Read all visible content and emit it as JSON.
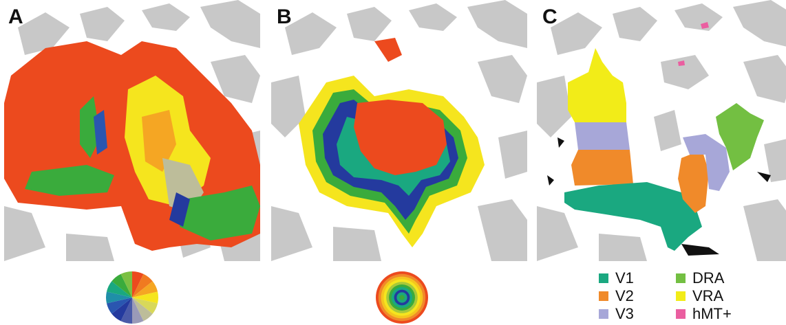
{
  "panels": {
    "a": {
      "label": "A"
    },
    "b": {
      "label": "B"
    },
    "c": {
      "label": "C"
    }
  },
  "legend": {
    "items": [
      {
        "label": "V1",
        "color": "#1aa880"
      },
      {
        "label": "V2",
        "color": "#f08a2a"
      },
      {
        "label": "V3",
        "color": "#a7a7d8"
      },
      {
        "label": "DRA",
        "color": "#73bf42"
      },
      {
        "label": "VRA",
        "color": "#f2ec18"
      },
      {
        "label": "hMT+",
        "color": "#ea5ea0"
      }
    ]
  },
  "colors": {
    "sulcus_gray": "#c8c8c8",
    "red_orange": "#ec4a1e",
    "orange": "#f08a2a",
    "yellow": "#f5e51e",
    "green": "#3aab3c",
    "blue": "#243a9e",
    "teal": "#1aa880"
  },
  "keys": {
    "polar_angle": [
      "#ec4a1e",
      "#f07a20",
      "#f5a623",
      "#f5e51e",
      "#d8d85a",
      "#bdbd9a",
      "#9a9ab8",
      "#4a5aa8",
      "#243a9e",
      "#2a56b0",
      "#1f8fa8",
      "#1aa880",
      "#3aab3c",
      "#7bc043"
    ],
    "eccentricity": [
      "#ec4a1e",
      "#f08a2a",
      "#f5c51e",
      "#f5e51e",
      "#a8c83a",
      "#3aab3c",
      "#1aa880",
      "#243a9e",
      "#1aa880",
      "#3aab3c"
    ]
  }
}
